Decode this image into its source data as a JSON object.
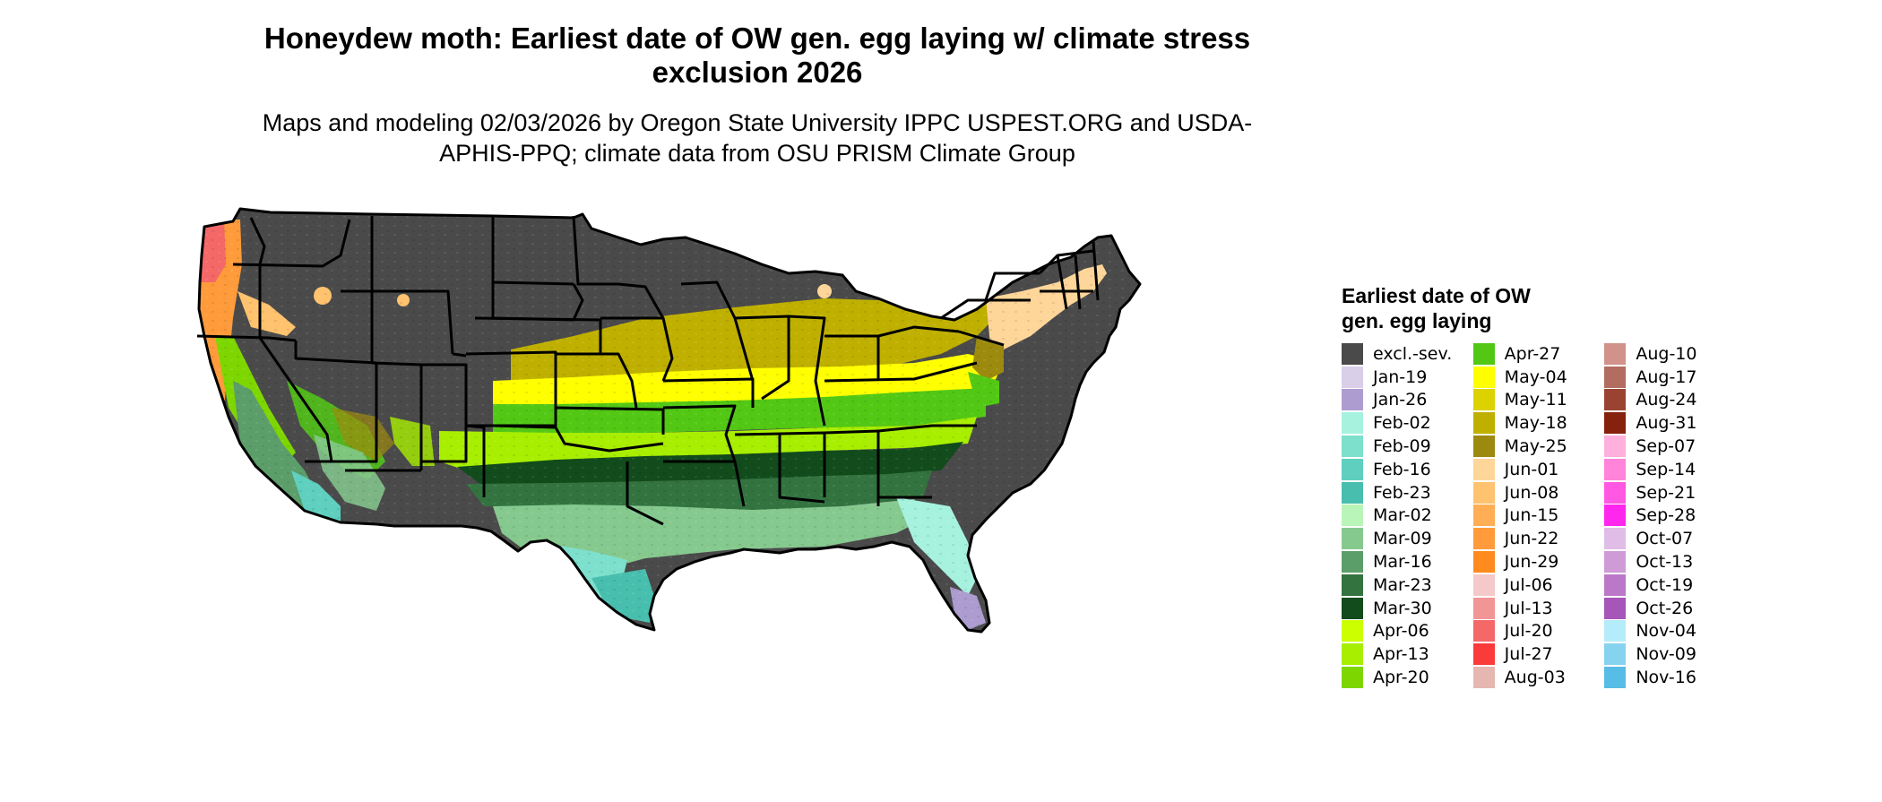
{
  "title": "Honeydew moth: Earliest date of OW gen. egg laying w/ climate stress exclusion 2026",
  "subtitle": "Maps and modeling 02/03/2026 by Oregon State University IPPC USPEST.ORG and USDA-APHIS-PPQ; climate data from OSU PRISM Climate Group",
  "legend": {
    "title": "Earliest date of OW gen. egg laying",
    "items": [
      {
        "label": "excl.-sev.",
        "color": "#4a4a4a"
      },
      {
        "label": "Jan-19",
        "color": "#d9cfe8"
      },
      {
        "label": "Jan-26",
        "color": "#ad9ccf"
      },
      {
        "label": "Feb-02",
        "color": "#a6f2df"
      },
      {
        "label": "Feb-09",
        "color": "#7de0cd"
      },
      {
        "label": "Feb-16",
        "color": "#5fcfbf"
      },
      {
        "label": "Feb-23",
        "color": "#48bfae"
      },
      {
        "label": "Mar-02",
        "color": "#b9f5b9"
      },
      {
        "label": "Mar-09",
        "color": "#86c98f"
      },
      {
        "label": "Mar-16",
        "color": "#5c9e6a"
      },
      {
        "label": "Mar-23",
        "color": "#33733f"
      },
      {
        "label": "Mar-30",
        "color": "#124b1c"
      },
      {
        "label": "Apr-06",
        "color": "#ccff00"
      },
      {
        "label": "Apr-13",
        "color": "#a8ee00"
      },
      {
        "label": "Apr-20",
        "color": "#7ed600"
      },
      {
        "label": "Apr-27",
        "color": "#52c815"
      },
      {
        "label": "May-04",
        "color": "#ffff00"
      },
      {
        "label": "May-11",
        "color": "#dcd200"
      },
      {
        "label": "May-18",
        "color": "#bfb000"
      },
      {
        "label": "May-25",
        "color": "#9c8a0e"
      },
      {
        "label": "Jun-01",
        "color": "#ffd699"
      },
      {
        "label": "Jun-08",
        "color": "#ffc26e"
      },
      {
        "label": "Jun-15",
        "color": "#ffae55"
      },
      {
        "label": "Jun-22",
        "color": "#ff9b3a"
      },
      {
        "label": "Jun-29",
        "color": "#ff8a1e"
      },
      {
        "label": "Jul-06",
        "color": "#f5c9c9"
      },
      {
        "label": "Jul-13",
        "color": "#f29595"
      },
      {
        "label": "Jul-20",
        "color": "#f46868"
      },
      {
        "label": "Jul-27",
        "color": "#fb3a3a"
      },
      {
        "label": "Aug-03",
        "color": "#e6b7b0"
      },
      {
        "label": "Aug-10",
        "color": "#d0928a"
      },
      {
        "label": "Aug-17",
        "color": "#b26d60"
      },
      {
        "label": "Aug-24",
        "color": "#9a4332"
      },
      {
        "label": "Aug-31",
        "color": "#86210e"
      },
      {
        "label": "Sep-07",
        "color": "#ffb0dc"
      },
      {
        "label": "Sep-14",
        "color": "#ff84da"
      },
      {
        "label": "Sep-21",
        "color": "#ff58e2"
      },
      {
        "label": "Sep-28",
        "color": "#ff26ee"
      },
      {
        "label": "Oct-07",
        "color": "#e0bde6"
      },
      {
        "label": "Oct-13",
        "color": "#cf9bd7"
      },
      {
        "label": "Oct-19",
        "color": "#bb78c8"
      },
      {
        "label": "Oct-26",
        "color": "#a655b9"
      },
      {
        "label": "Nov-04",
        "color": "#b5ecfb"
      },
      {
        "label": "Nov-09",
        "color": "#86d3f0"
      },
      {
        "label": "Nov-16",
        "color": "#57bde6"
      }
    ]
  },
  "map": {
    "region": "Conterminous United States",
    "state_border_color": "#000000",
    "excluded_color": "#4a4a4a"
  }
}
